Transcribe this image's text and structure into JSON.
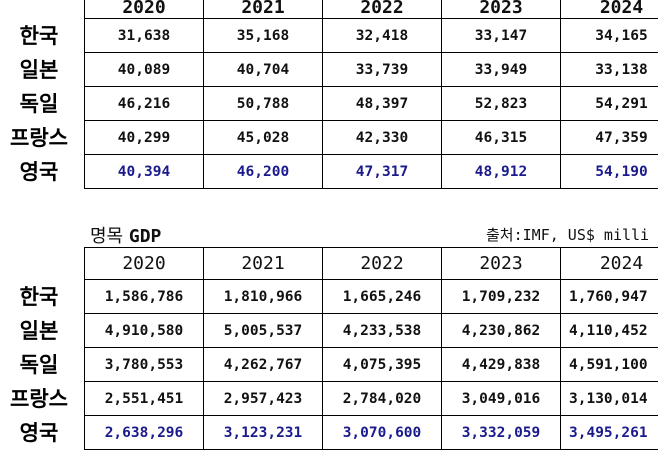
{
  "countries": [
    "한국",
    "일본",
    "독일",
    "프랑스",
    "영국"
  ],
  "per_capita": {
    "years": [
      "2020",
      "2021",
      "2022",
      "2023",
      "2024"
    ],
    "rows": [
      [
        "31,638",
        "35,168",
        "32,418",
        "33,147",
        "34,165"
      ],
      [
        "40,089",
        "40,704",
        "33,739",
        "33,949",
        "33,138"
      ],
      [
        "46,216",
        "50,788",
        "48,397",
        "52,823",
        "54,291"
      ],
      [
        "40,299",
        "45,028",
        "42,330",
        "46,315",
        "47,359"
      ],
      [
        "40,394",
        "46,200",
        "47,317",
        "48,912",
        "54,190"
      ]
    ]
  },
  "nominal_gdp": {
    "title_prefix": "명목",
    "title_suffix": "GDP",
    "source": "출처:IMF, US$ milli",
    "years": [
      "2020",
      "2021",
      "2022",
      "2023",
      "2024"
    ],
    "rows": [
      [
        "1,586,786",
        "1,810,966",
        "1,665,246",
        "1,709,232",
        "1,760,947"
      ],
      [
        "4,910,580",
        "5,005,537",
        "4,233,538",
        "4,230,862",
        "4,110,452"
      ],
      [
        "3,780,553",
        "4,262,767",
        "4,075,395",
        "4,429,838",
        "4,591,100"
      ],
      [
        "2,551,451",
        "2,957,423",
        "2,784,020",
        "3,049,016",
        "3,130,014"
      ],
      [
        "2,638,296",
        "3,123,231",
        "3,070,600",
        "3,332,059",
        "3,495,261"
      ]
    ]
  },
  "colors": {
    "highlight_row": "#1a1a8c"
  }
}
